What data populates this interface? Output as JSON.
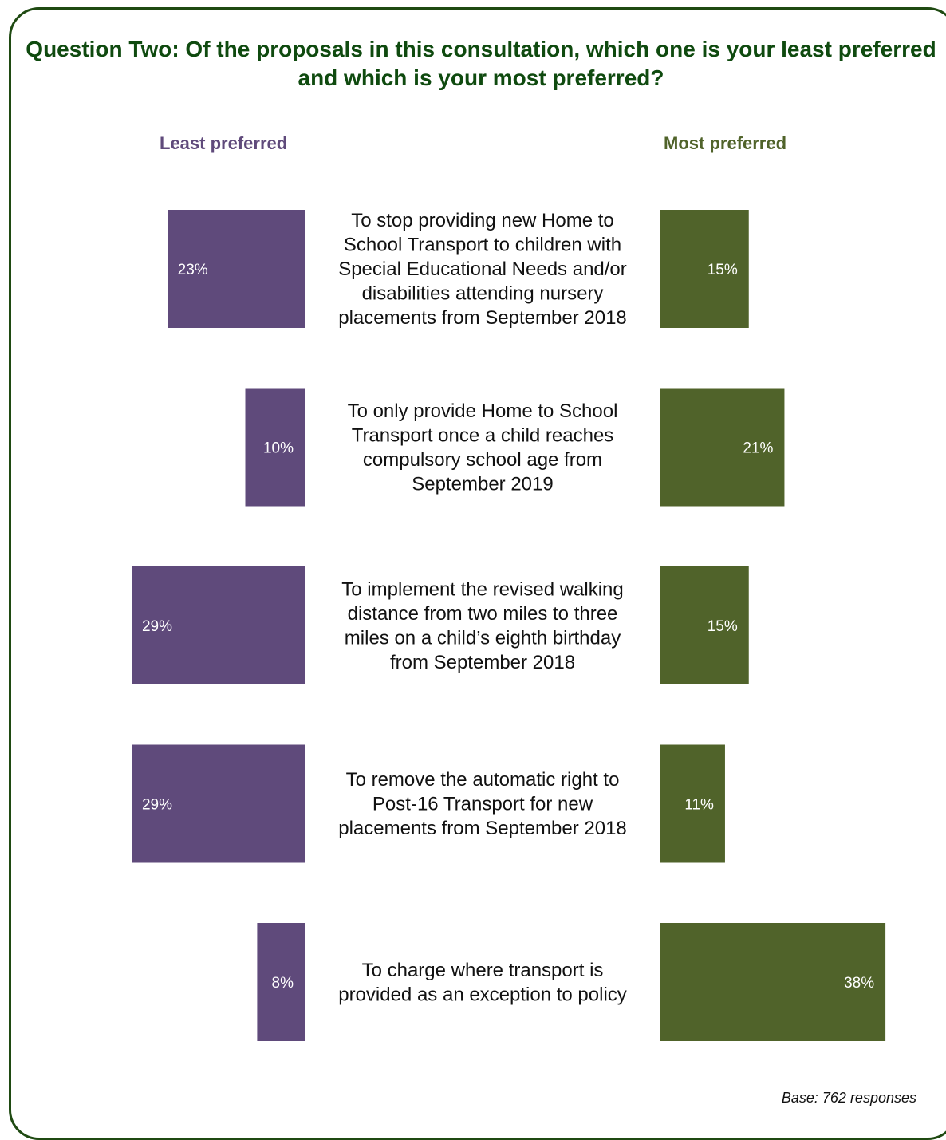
{
  "title": "Question Two: Of the proposals in this consultation, which one is your least preferred and which is your most preferred?",
  "colors": {
    "least": "#5f4a7b",
    "most": "#50632a",
    "title": "#0f4a0f",
    "frame": "#1f4a12"
  },
  "chart_data": {
    "type": "bar",
    "categories": [
      "To stop providing new Home to School Transport to children with Special Educational Needs and/or disabilities attending nursery placements from September 2018",
      "To only provide Home to School Transport once a child reaches compulsory school age from September 2019",
      "To implement the revised walking distance from two miles to three miles on a child’s eighth birthday from September 2018",
      "To remove the automatic right to Post-16 Transport for new placements from September 2018",
      "To charge where transport is provided as an exception to policy"
    ],
    "category_lines": [
      [
        "To stop providing new Home to",
        "School Transport to children with",
        "Special Educational Needs and/or",
        "disabilities attending nursery",
        "placements from September 2018"
      ],
      [
        "To only provide Home to School",
        "Transport once a child reaches",
        "compulsory school age from",
        "September 2019"
      ],
      [
        "To implement the revised walking",
        "distance from two miles to three",
        "miles on a child’s eighth birthday",
        "from September 2018"
      ],
      [
        "To remove the automatic right to",
        "Post-16 Transport for new",
        "placements from September 2018"
      ],
      [
        "To charge where transport is",
        "provided as an exception to policy"
      ]
    ],
    "series": [
      {
        "name": "Least preferred",
        "values": [
          23,
          10,
          29,
          29,
          8
        ],
        "labels": [
          "23%",
          "10%",
          "29%",
          "29%",
          "8%"
        ]
      },
      {
        "name": "Most preferred",
        "values": [
          15,
          21,
          15,
          11,
          38
        ],
        "labels": [
          "15%",
          "21%",
          "15%",
          "11%",
          "38%"
        ]
      }
    ],
    "unit": "%"
  },
  "footer": {
    "base": "Base: 762 responses"
  }
}
